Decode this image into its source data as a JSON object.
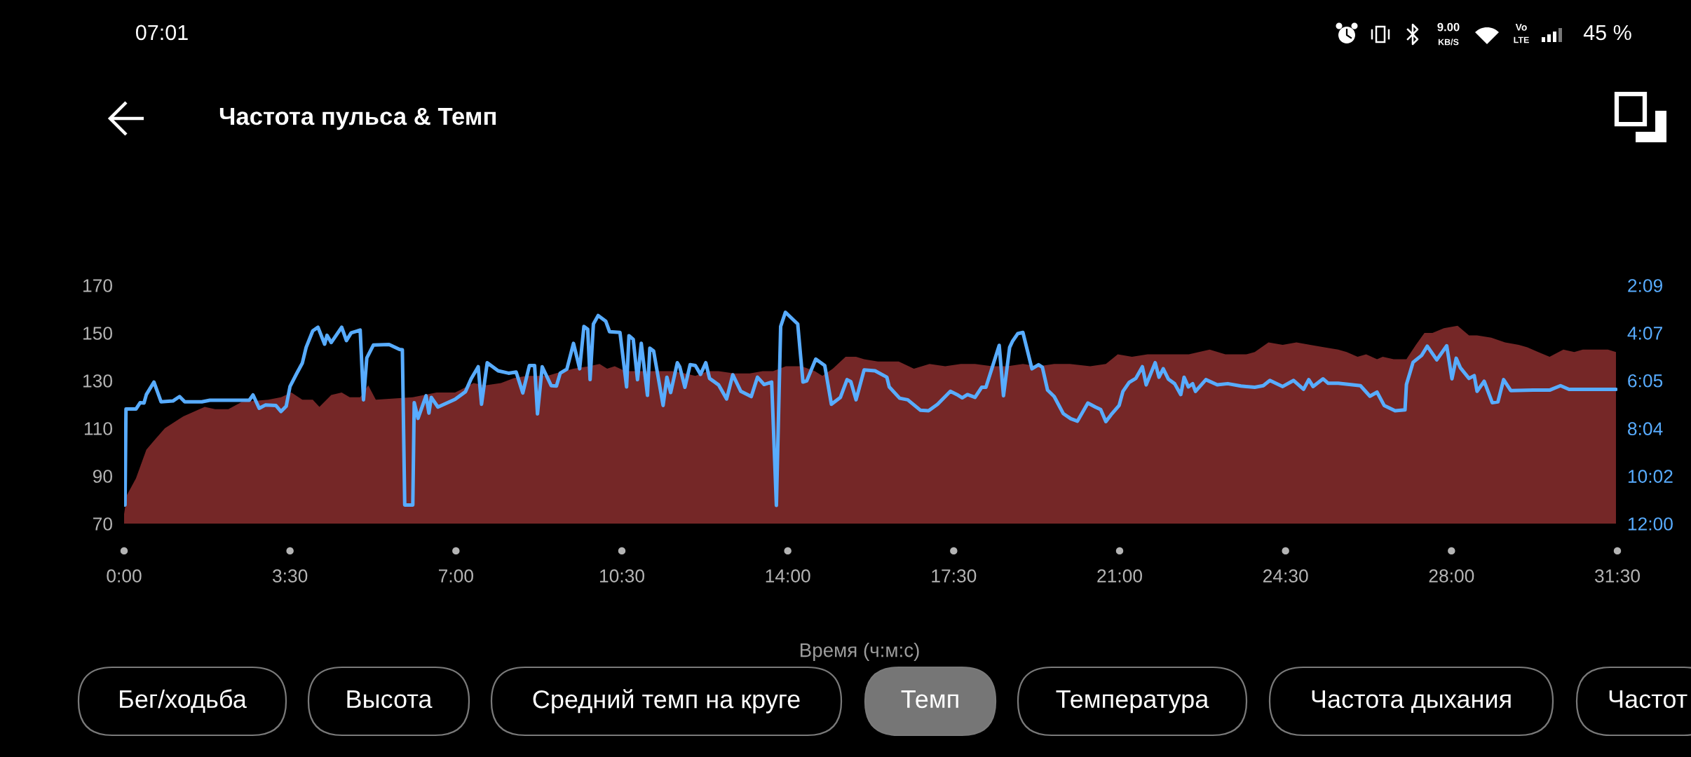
{
  "chart_data": {
    "type": "area",
    "title": "Частота пульса & Темп",
    "xlabel": "Время (ч:м:с)",
    "xlim": [
      0,
      31.5
    ],
    "xticks": [
      {
        "value": 0,
        "label": "0:00"
      },
      {
        "value": 3.5,
        "label": "3:30"
      },
      {
        "value": 7,
        "label": "7:00"
      },
      {
        "value": 10.5,
        "label": "10:30"
      },
      {
        "value": 14,
        "label": "14:00"
      },
      {
        "value": 17.5,
        "label": "17:30"
      },
      {
        "value": 21,
        "label": "21:00"
      },
      {
        "value": 24.5,
        "label": "24:30"
      },
      {
        "value": 28,
        "label": "28:00"
      },
      {
        "value": 31.5,
        "label": "31:30"
      }
    ],
    "ylim": [
      70,
      170
    ],
    "yticks": [
      70,
      90,
      110,
      130,
      150,
      170
    ],
    "y2lim": [
      720,
      129
    ],
    "y2ticks": [
      {
        "value": 720,
        "label": "12:00"
      },
      {
        "value": 602,
        "label": "10:02"
      },
      {
        "value": 484,
        "label": "8:04"
      },
      {
        "value": 365,
        "label": "6:05"
      },
      {
        "value": 247,
        "label": "4:07"
      },
      {
        "value": 129,
        "label": "2:09"
      }
    ],
    "series": [
      {
        "color": "#752727",
        "x": [
          0,
          0.06,
          0.25,
          0.36,
          0.47,
          0.64,
          0.86,
          1.25,
          1.7,
          1.92,
          2.2,
          2.48,
          3.04,
          3.31,
          3.53,
          3.76,
          3.98,
          4.12,
          4.37,
          4.59,
          4.76,
          4.98,
          5.15,
          5.31,
          6.09,
          6.59,
          6.98,
          7.09,
          7.37,
          7.62,
          7.95,
          8.22,
          8.49,
          8.93,
          9.1,
          9.48,
          9.81,
          10.03,
          10.19,
          10.35,
          10.57,
          11.01,
          11.34,
          11.56,
          11.83,
          12.05,
          12.32,
          12.54,
          12.87,
          13.2,
          13.47,
          13.69,
          13.96,
          14.29,
          14.57,
          14.73,
          14.95,
          15.22,
          15.44,
          15.61,
          15.9,
          16.34,
          16.66,
          16.99,
          17.32,
          17.65,
          17.95,
          18.31,
          18.63,
          18.96,
          19.29,
          19.62,
          19.95,
          20.38,
          20.71,
          20.96,
          21.26,
          21.59,
          22.02,
          22.46,
          22.9,
          23.23,
          23.67,
          23.85,
          24.14,
          24.44,
          24.73,
          25.02,
          25.32,
          25.61,
          25.79,
          26.02,
          26.2,
          26.43,
          26.55,
          26.78,
          27.05,
          27.25,
          27.43,
          27.6,
          27.84,
          28.13,
          28.37,
          28.54,
          28.84,
          29.13,
          29.42,
          29.6,
          29.83,
          30.07,
          30.36,
          30.59,
          30.77,
          31.3,
          31.47
        ],
        "values": [
          74,
          82,
          89,
          95,
          101,
          105,
          110,
          115,
          119,
          118,
          118,
          121,
          122,
          123,
          125,
          122,
          122,
          119,
          124,
          125,
          123,
          123,
          128,
          122,
          123,
          125,
          125,
          126,
          129,
          128,
          129,
          131,
          132,
          132,
          133,
          135,
          136,
          137,
          135,
          136,
          134,
          134,
          134,
          134,
          133,
          132,
          134,
          134,
          133,
          133,
          134,
          134,
          136,
          136,
          134,
          132,
          135,
          140,
          140,
          139,
          138,
          138,
          135,
          137,
          136,
          137,
          137,
          136,
          136,
          137,
          136,
          137,
          137,
          136,
          137,
          141,
          140,
          141,
          141,
          141,
          143,
          141,
          141,
          142,
          146,
          145,
          146,
          145,
          144,
          143,
          142,
          140,
          141,
          139,
          140,
          139,
          139,
          145,
          150,
          150,
          152,
          153,
          149,
          149,
          148,
          146,
          145,
          144,
          142,
          140,
          143,
          142,
          143,
          143,
          142
        ]
      },
      {
        "type": "line",
        "axis": "y2",
        "color": "#58acff",
        "x": [
          0.02,
          0.04,
          0.25,
          0.34,
          0.42,
          0.47,
          0.63,
          0.78,
          1.03,
          1.17,
          1.28,
          1.64,
          1.81,
          2.64,
          2.72,
          2.85,
          2.98,
          3.2,
          3.31,
          3.42,
          3.5,
          3.64,
          3.76,
          3.84,
          3.98,
          4.09,
          4.23,
          4.28,
          4.37,
          4.59,
          4.69,
          4.79,
          4.98,
          5.05,
          5.12,
          5.26,
          5.59,
          5.81,
          5.87,
          5.92,
          6.09,
          6.12,
          6.2,
          6.37,
          6.43,
          6.48,
          6.62,
          6.98,
          7.2,
          7.32,
          7.47,
          7.54,
          7.66,
          7.89,
          8.11,
          8.27,
          8.41,
          8.55,
          8.66,
          8.72,
          8.82,
          9.01,
          9.12,
          9.2,
          9.34,
          9.48,
          9.61,
          9.7,
          9.78,
          9.83,
          9.9,
          10.0,
          10.16,
          10.24,
          10.46,
          10.6,
          10.65,
          10.74,
          10.83,
          10.91,
          11.04,
          11.09,
          11.17,
          11.37,
          11.45,
          11.53,
          11.67,
          11.72,
          11.83,
          11.94,
          12.05,
          12.16,
          12.27,
          12.35,
          12.54,
          12.71,
          12.84,
          13.01,
          13.23,
          13.36,
          13.5,
          13.66,
          13.76,
          13.85,
          13.95,
          14.21,
          14.32,
          14.4,
          14.59,
          14.78,
          14.92,
          15.11,
          15.25,
          15.33,
          15.44,
          15.61,
          15.84,
          16.09,
          16.14,
          16.36,
          16.53,
          16.8,
          16.97,
          17.16,
          17.43,
          17.57,
          17.68,
          17.79,
          17.95,
          18.09,
          18.18,
          18.46,
          18.55,
          18.68,
          18.74,
          18.85,
          18.96,
          19.15,
          19.29,
          19.37,
          19.48,
          19.62,
          19.81,
          19.97,
          20.11,
          20.33,
          20.49,
          20.6,
          20.71,
          20.82,
          20.99,
          21.07,
          21.2,
          21.34,
          21.48,
          21.56,
          21.75,
          21.83,
          21.92,
          22.03,
          22.16,
          22.29,
          22.36,
          22.45,
          22.54,
          22.6,
          22.82,
          23.06,
          23.28,
          23.56,
          23.85,
          24.03,
          24.17,
          24.44,
          24.67,
          24.88,
          24.99,
          25.08,
          25.29,
          25.4,
          25.61,
          26.08,
          26.28,
          26.43,
          26.58,
          26.81,
          27.02,
          27.05,
          27.19,
          27.37,
          27.49,
          27.69,
          27.9,
          28.01,
          28.1,
          28.19,
          28.37,
          28.48,
          28.54,
          28.69,
          28.86,
          28.98,
          29.1,
          29.25,
          29.72,
          30.07,
          30.3,
          30.48,
          31.47
        ],
        "values": [
          674,
          436,
          436,
          420,
          421,
          400,
          369,
          418,
          416,
          405,
          418,
          418,
          414,
          414,
          401,
          434,
          426,
          427,
          442,
          429,
          380,
          348,
          322,
          283,
          242,
          233,
          275,
          253,
          271,
          233,
          266,
          247,
          240,
          413,
          309,
          277,
          276,
          288,
          289,
          674,
          674,
          420,
          459,
          403,
          446,
          407,
          431,
          412,
          393,
          361,
          331,
          424,
          321,
          341,
          347,
          344,
          396,
          328,
          328,
          448,
          331,
          378,
          379,
          347,
          337,
          273,
          336,
          231,
          238,
          363,
          225,
          204,
          218,
          244,
          246,
          381,
          254,
          263,
          363,
          273,
          402,
          285,
          292,
          427,
          357,
          395,
          321,
          331,
          382,
          326,
          328,
          350,
          321,
          360,
          376,
          411,
          351,
          392,
          405,
          357,
          375,
          369,
          675,
          231,
          196,
          225,
          369,
          366,
          312,
          328,
          424,
          407,
          363,
          368,
          413,
          339,
          341,
          357,
          381,
          409,
          413,
          439,
          440,
          424,
          392,
          400,
          408,
          400,
          407,
          382,
          382,
          278,
          403,
          283,
          268,
          249,
          246,
          336,
          326,
          332,
          389,
          405,
          447,
          460,
          466,
          421,
          431,
          437,
          467,
          450,
          427,
          392,
          370,
          360,
          331,
          376,
          321,
          357,
          336,
          362,
          373,
          400,
          357,
          381,
          373,
          392,
          363,
          376,
          373,
          379,
          382,
          378,
          365,
          380,
          365,
          387,
          363,
          380,
          361,
          372,
          372,
          378,
          404,
          394,
          427,
          440,
          438,
          375,
          320,
          303,
          280,
          314,
          279,
          361,
          310,
          334,
          360,
          353,
          392,
          367,
          420,
          418,
          363,
          390,
          389,
          389,
          378,
          387,
          387
        ]
      }
    ],
    "annotations": [
      "07:01",
      "9.00",
      "KB/S",
      "Vo",
      "LTE",
      "45 %",
      "Бег/ходьба",
      "Высота",
      "Средний темп на круге",
      "Темп",
      "Температура",
      "Частота дыхания",
      "Частот"
    ]
  }
}
